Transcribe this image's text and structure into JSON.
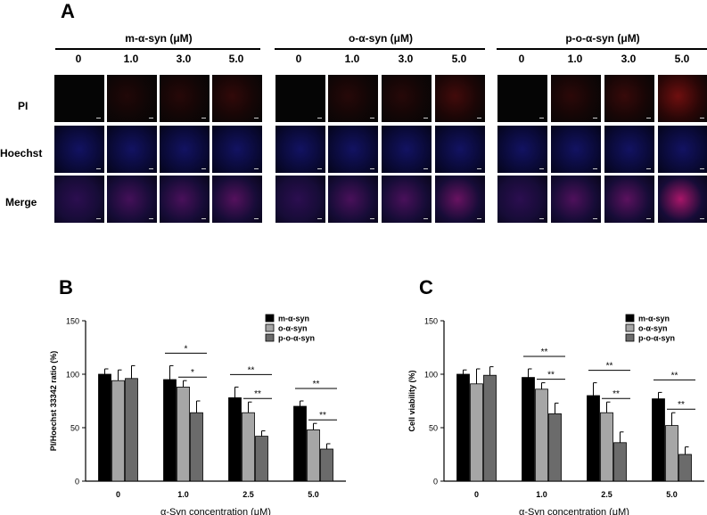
{
  "panel_a": {
    "letter": "A",
    "groups": [
      {
        "title": "m-α-syn (μM)",
        "concentrations": [
          "0",
          "1.0",
          "3.0",
          "5.0"
        ]
      },
      {
        "title": "o-α-syn (μM)",
        "concentrations": [
          "0",
          "1.0",
          "3.0",
          "5.0"
        ]
      },
      {
        "title": "p-o-α-syn (μM)",
        "concentrations": [
          "0",
          "1.0",
          "3.0",
          "5.0"
        ]
      }
    ],
    "row_labels": [
      "PI",
      "Hoechst",
      "Merge"
    ],
    "colors": {
      "pi": "#d01818",
      "hoechst": "#2a2ad8"
    }
  },
  "chart_data": [
    {
      "panel": "B",
      "type": "bar",
      "ylabel": "PI/Hoechst 33342 ratio (%)",
      "xlabel": "α-Syn concentration (μM)",
      "categories": [
        "0",
        "1.0",
        "2.5",
        "5.0"
      ],
      "ylim": [
        0,
        150
      ],
      "yticks": [
        0,
        50,
        100,
        150
      ],
      "series": [
        {
          "name": "m-α-syn",
          "color": "#000000",
          "values": [
            100,
            95,
            78,
            70
          ],
          "errors": [
            5,
            13,
            10,
            5
          ]
        },
        {
          "name": "o-α-syn",
          "color": "#a6a6a6",
          "values": [
            94,
            88,
            64,
            48
          ],
          "errors": [
            10,
            6,
            10,
            6
          ]
        },
        {
          "name": "p-o-α-syn",
          "color": "#6b6b6b",
          "values": [
            96,
            64,
            42,
            30
          ],
          "errors": [
            12,
            11,
            5,
            5
          ]
        }
      ],
      "legend_position": "top-right",
      "annotations": [
        {
          "group": 1,
          "from": 0,
          "to": 2,
          "label": "*"
        },
        {
          "group": 1,
          "from": 1,
          "to": 2,
          "label": "*"
        },
        {
          "group": 2,
          "from": 0,
          "to": 2,
          "label": "**"
        },
        {
          "group": 2,
          "from": 1,
          "to": 2,
          "label": "**"
        },
        {
          "group": 3,
          "from": 0,
          "to": 2,
          "label": "**"
        },
        {
          "group": 3,
          "from": 1,
          "to": 2,
          "label": "**"
        }
      ]
    },
    {
      "panel": "C",
      "type": "bar",
      "ylabel": "Cell viability (%)",
      "xlabel": "α-Syn concentration (μM)",
      "categories": [
        "0",
        "1.0",
        "2.5",
        "5.0"
      ],
      "ylim": [
        0,
        150
      ],
      "yticks": [
        0,
        50,
        100,
        150
      ],
      "series": [
        {
          "name": "m-α-syn",
          "color": "#000000",
          "values": [
            100,
            97,
            80,
            77
          ],
          "errors": [
            4,
            8,
            12,
            6
          ]
        },
        {
          "name": "o-α-syn",
          "color": "#a6a6a6",
          "values": [
            91,
            86,
            64,
            52
          ],
          "errors": [
            14,
            6,
            10,
            12
          ]
        },
        {
          "name": "p-o-α-syn",
          "color": "#6b6b6b",
          "values": [
            99,
            63,
            36,
            25
          ],
          "errors": [
            8,
            10,
            10,
            7
          ]
        }
      ],
      "legend_position": "top-right",
      "annotations": [
        {
          "group": 1,
          "from": 0,
          "to": 2,
          "label": "**"
        },
        {
          "group": 1,
          "from": 1,
          "to": 2,
          "label": "**"
        },
        {
          "group": 2,
          "from": 0,
          "to": 2,
          "label": "**"
        },
        {
          "group": 2,
          "from": 1,
          "to": 2,
          "label": "**"
        },
        {
          "group": 3,
          "from": 0,
          "to": 2,
          "label": "**"
        },
        {
          "group": 3,
          "from": 1,
          "to": 2,
          "label": "**"
        }
      ]
    }
  ]
}
